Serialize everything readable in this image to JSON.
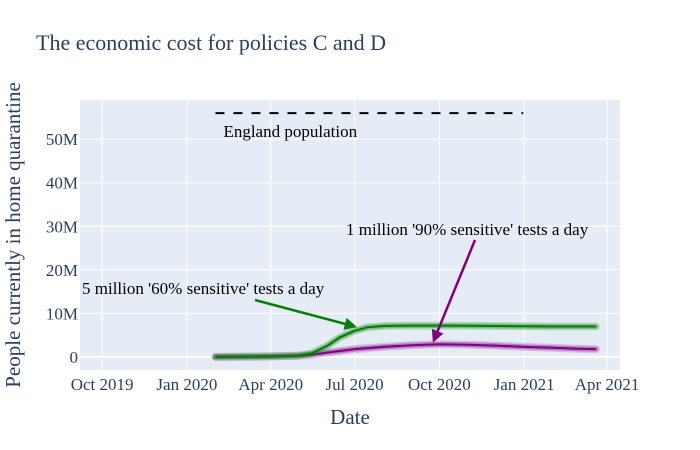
{
  "chart_data": {
    "type": "line",
    "title": "The economic cost for policies C and D",
    "xlabel": "Date",
    "ylabel": "People currently in home quarantine",
    "x_ticks": [
      "Oct 2019",
      "Jan 2020",
      "Apr 2020",
      "Jul 2020",
      "Oct 2020",
      "Jan 2021",
      "Apr 2021"
    ],
    "y_ticks": [
      "0",
      "10M",
      "20M",
      "30M",
      "40M",
      "50M"
    ],
    "y_tick_values": [
      0,
      10000000,
      20000000,
      30000000,
      40000000,
      50000000
    ],
    "x_range": [
      "2019-09-07",
      "2021-04-15"
    ],
    "y_range": [
      -3000000,
      59000000
    ],
    "grid": true,
    "colors": {
      "plot_bg": "#e5ecf6",
      "grid": "#ffffff",
      "text": "#2a3f5f",
      "policy_c": "#008000",
      "policy_d": "#800080",
      "reference": "#000000"
    },
    "reference_line": {
      "label": "England population",
      "value": 56000000,
      "x_start": "2020-02-01",
      "x_end": "2020-12-31",
      "style": "dashed"
    },
    "series": [
      {
        "key": "policy_c",
        "color": "#008000",
        "x": [
          "2020-02-01",
          "2020-04-01",
          "2020-05-01",
          "2020-05-15",
          "2020-06-01",
          "2020-06-15",
          "2020-07-01",
          "2020-07-15",
          "2020-08-01",
          "2020-08-15",
          "2020-09-01",
          "2020-10-01",
          "2020-11-01",
          "2020-12-01",
          "2021-01-01",
          "2021-02-01",
          "2021-03-01",
          "2021-03-20"
        ],
        "y": [
          0,
          150000,
          300000,
          800000,
          2500000,
          4500000,
          6000000,
          6800000,
          7100000,
          7150000,
          7200000,
          7200000,
          7150000,
          7100000,
          7050000,
          7000000,
          7000000,
          7000000
        ]
      },
      {
        "key": "policy_d",
        "color": "#800080",
        "x": [
          "2020-02-01",
          "2020-04-01",
          "2020-05-01",
          "2020-05-15",
          "2020-06-01",
          "2020-07-01",
          "2020-08-01",
          "2020-09-01",
          "2020-10-01",
          "2020-11-01",
          "2020-12-01",
          "2021-01-01",
          "2021-02-01",
          "2021-03-01",
          "2021-03-20"
        ],
        "y": [
          0,
          100000,
          250000,
          500000,
          1000000,
          1800000,
          2300000,
          2700000,
          2900000,
          2800000,
          2600000,
          2300000,
          2100000,
          1900000,
          1800000
        ]
      }
    ],
    "annotations": [
      {
        "text": "5 million '60% sensitive' tests a day",
        "color": "#008000",
        "target_x": "2020-07-01",
        "target_y": 7000000
      },
      {
        "text": "1 million '90% sensitive' tests a day",
        "color": "#800080",
        "target_x": "2020-09-25",
        "target_y": 3800000
      }
    ]
  }
}
